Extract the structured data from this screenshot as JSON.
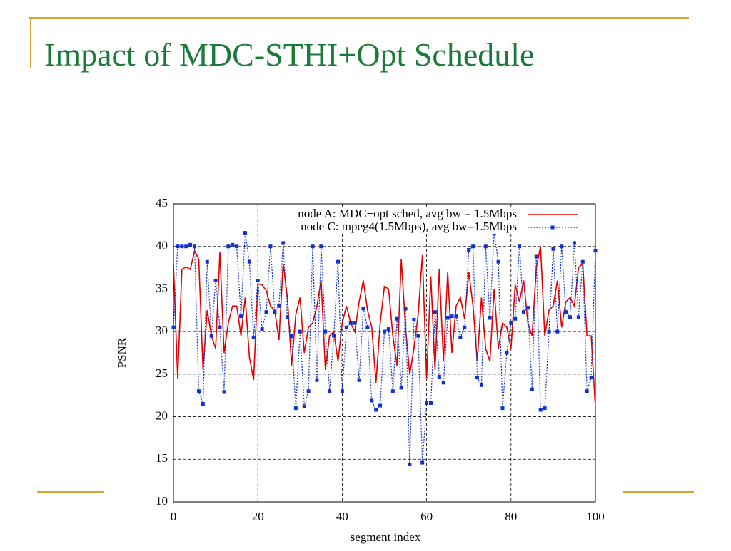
{
  "title": "Impact of MDC-STHI+Opt Schedule",
  "chart_data": {
    "type": "line",
    "xlabel": "segment index",
    "ylabel": "PSNR",
    "xlim": [
      0,
      100
    ],
    "ylim": [
      10,
      45
    ],
    "xticks": [
      0,
      20,
      40,
      60,
      80,
      100
    ],
    "yticks": [
      10,
      15,
      20,
      25,
      30,
      35,
      40,
      45
    ],
    "grid": true,
    "legend": "top-right",
    "x": [
      0,
      1,
      2,
      3,
      4,
      5,
      6,
      7,
      8,
      9,
      10,
      11,
      12,
      13,
      14,
      15,
      16,
      17,
      18,
      19,
      20,
      21,
      22,
      23,
      24,
      25,
      26,
      27,
      28,
      29,
      30,
      31,
      32,
      33,
      34,
      35,
      36,
      37,
      38,
      39,
      40,
      41,
      42,
      43,
      44,
      45,
      46,
      47,
      48,
      49,
      50,
      51,
      52,
      53,
      54,
      55,
      56,
      57,
      58,
      59,
      60,
      61,
      62,
      63,
      64,
      65,
      66,
      67,
      68,
      69,
      70,
      71,
      72,
      73,
      74,
      75,
      76,
      77,
      78,
      79,
      80,
      81,
      82,
      83,
      84,
      85,
      86,
      87,
      88,
      89,
      90,
      91,
      92,
      93,
      94,
      95,
      96,
      97,
      98,
      99,
      100
    ],
    "series": [
      {
        "name": "node A: MDC+opt sched, avg bw = 1.5Mbps",
        "color": "#e00000",
        "style": "solid",
        "values": [
          38,
          24.5,
          37.3,
          37.6,
          37.3,
          39.5,
          38.5,
          25.5,
          32.5,
          29.5,
          28,
          39.3,
          27.5,
          31,
          33,
          33,
          29.5,
          34,
          27,
          24.3,
          35.6,
          35.5,
          34.8,
          33,
          32.5,
          29,
          38,
          34,
          26,
          32,
          34,
          27.5,
          30.5,
          31,
          33,
          36,
          25.5,
          29.5,
          30,
          26.5,
          31,
          33,
          31,
          30,
          33.5,
          36,
          32.5,
          30.5,
          24,
          31,
          35.3,
          35,
          29.5,
          26,
          38.5,
          30.5,
          25,
          28,
          32,
          39,
          24.5,
          36.5,
          25.5,
          37.3,
          26.5,
          37,
          27.5,
          33,
          34,
          31.5,
          37,
          33,
          26.5,
          34,
          28,
          26.5,
          35,
          28,
          31,
          30.5,
          28,
          35.5,
          33.5,
          36,
          31,
          29.5,
          37.5,
          40,
          29.5,
          32.5,
          33,
          36,
          30.5,
          33.5,
          34,
          33,
          37.5,
          38,
          29.5,
          29.5,
          21
        ]
      },
      {
        "name": "node C: mpeg4(1.5Mbps), avg bw=1.5Mbps",
        "color": "#1030d0",
        "style": "dotted",
        "values": [
          30.5,
          40,
          40,
          40,
          40.2,
          40,
          23,
          21.5,
          38.2,
          29.5,
          36,
          30.5,
          22.9,
          40,
          40.2,
          40,
          31.8,
          41.6,
          38.2,
          29.3,
          36,
          30.3,
          32.3,
          40,
          32.3,
          33,
          40.4,
          31.7,
          29.5,
          21,
          30,
          21.2,
          23,
          40,
          24.3,
          40,
          30,
          23,
          29.5,
          38.2,
          23,
          30.5,
          31,
          31,
          24.3,
          32.7,
          30.5,
          21.9,
          20.8,
          21.3,
          30,
          30.3,
          23,
          31.5,
          23.4,
          32.7,
          14.4,
          31.4,
          29.5,
          14.6,
          21.6,
          21.6,
          32.3,
          24.7,
          24,
          31.6,
          31.8,
          31.8,
          29.3,
          30.5,
          39.6,
          40,
          24.6,
          23.7,
          40,
          31.6,
          41.6,
          38.2,
          21,
          27.5,
          31,
          31.5,
          40,
          32.3,
          32.8,
          23.2,
          38.8,
          20.8,
          21,
          30,
          39.7,
          30,
          40,
          32.3,
          31.7,
          40.4,
          31.7,
          38.2,
          23,
          24.6,
          39.5
        ]
      }
    ]
  }
}
